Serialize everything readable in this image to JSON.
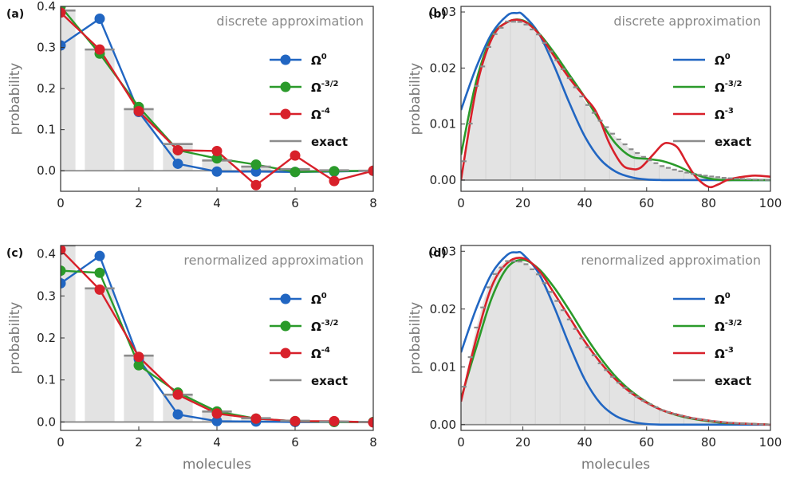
{
  "colors": {
    "omega0": "#2166c2",
    "omega32": "#2a9a2a",
    "omegaHigh": "#d8202a",
    "exact": "#8c8c8c",
    "histogram": "#e3e3e3"
  },
  "chart_data": [
    {
      "panel": "(a)",
      "type": "line",
      "title": "discrete approximation",
      "xlabel": "",
      "ylabel": "probability",
      "xlim": [
        0,
        8
      ],
      "ylim": [
        -0.05,
        0.4
      ],
      "xticks": [
        "0",
        "2",
        "4",
        "6",
        "8"
      ],
      "yticks": [
        "0.0",
        "0.1",
        "0.2",
        "0.3",
        "0.4"
      ],
      "legend_position": "right",
      "exact": {
        "name": "exact",
        "x": [
          0,
          1,
          2,
          3,
          4,
          5,
          6,
          7,
          8
        ],
        "values": [
          0.39,
          0.295,
          0.15,
          0.065,
          0.025,
          0.01,
          0.004,
          0.001,
          0.0
        ]
      },
      "series": [
        {
          "name": "Ω",
          "sup": "0",
          "color": "#2166c2",
          "markers": true,
          "x": [
            0,
            1,
            2,
            3,
            4,
            5,
            6,
            7,
            8
          ],
          "values": [
            0.305,
            0.37,
            0.143,
            0.017,
            -0.002,
            -0.002,
            -0.003,
            -0.002,
            0.0
          ]
        },
        {
          "name": "Ω",
          "sup": "-3/2",
          "color": "#2a9a2a",
          "markers": true,
          "x": [
            0,
            1,
            2,
            3,
            4,
            5,
            6,
            7,
            8
          ],
          "values": [
            0.4,
            0.285,
            0.155,
            0.05,
            0.03,
            0.015,
            -0.003,
            -0.001,
            0.0
          ]
        },
        {
          "name": "Ω",
          "sup": "-4",
          "color": "#d8202a",
          "markers": true,
          "x": [
            0,
            1,
            2,
            3,
            4,
            5,
            6,
            7,
            8
          ],
          "values": [
            0.385,
            0.295,
            0.145,
            0.05,
            0.048,
            -0.035,
            0.037,
            -0.025,
            0.0
          ]
        }
      ]
    },
    {
      "panel": "(b)",
      "type": "line",
      "title": "discrete approximation",
      "xlabel": "",
      "ylabel": "probability",
      "xlim": [
        0,
        100
      ],
      "ylim": [
        -0.002,
        0.031
      ],
      "xticks": [
        "0",
        "20",
        "40",
        "60",
        "80",
        "100"
      ],
      "yticks": [
        "0.00",
        "0.01",
        "0.02",
        "0.03"
      ],
      "legend_position": "right",
      "exact": {
        "name": "exact",
        "x": [
          0,
          5,
          10,
          15,
          20,
          25,
          30,
          35,
          40,
          45,
          50,
          55,
          60,
          65,
          70,
          75,
          80,
          85,
          90,
          95,
          100
        ],
        "values": [
          0.0,
          0.0168,
          0.0255,
          0.0283,
          0.0282,
          0.026,
          0.0222,
          0.0182,
          0.0141,
          0.0106,
          0.0077,
          0.0055,
          0.0038,
          0.0025,
          0.0017,
          0.0011,
          0.0007,
          0.0004,
          0.0002,
          0.0001,
          0.0
        ]
      },
      "series": [
        {
          "name": "Ω",
          "sup": "0",
          "color": "#2166c2",
          "markers": false,
          "x": [
            0,
            5,
            10,
            15,
            18,
            20,
            25,
            30,
            35,
            40,
            45,
            50,
            55,
            60,
            65,
            70,
            80,
            100
          ],
          "values": [
            0.0125,
            0.0202,
            0.0262,
            0.0294,
            0.0298,
            0.0295,
            0.0263,
            0.0205,
            0.0138,
            0.0078,
            0.0037,
            0.0015,
            0.0005,
            0.0001,
            0.0,
            0.0,
            0.0,
            0.0
          ]
        },
        {
          "name": "Ω",
          "sup": "-3/2",
          "color": "#2a9a2a",
          "markers": false,
          "x": [
            0,
            5,
            10,
            15,
            20,
            25,
            30,
            35,
            40,
            45,
            50,
            55,
            60,
            65,
            70,
            75,
            80,
            85,
            90,
            100
          ],
          "values": [
            0.0045,
            0.0178,
            0.0256,
            0.0282,
            0.0285,
            0.0263,
            0.0228,
            0.0188,
            0.0148,
            0.0105,
            0.0065,
            0.0042,
            0.0038,
            0.0034,
            0.0025,
            0.0012,
            0.0003,
            0.0,
            0.0,
            0.0
          ]
        },
        {
          "name": "Ω",
          "sup": "-3",
          "color": "#d8202a",
          "markers": false,
          "x": [
            0,
            5,
            10,
            15,
            20,
            25,
            30,
            35,
            40,
            43,
            45,
            48,
            52,
            55,
            58,
            62,
            65,
            67,
            70,
            73,
            76,
            80,
            83,
            86,
            90,
            95,
            100
          ],
          "values": [
            0.0,
            0.0165,
            0.0253,
            0.0282,
            0.0284,
            0.0262,
            0.0222,
            0.0182,
            0.0148,
            0.0128,
            0.0106,
            0.0065,
            0.0028,
            0.002,
            0.0022,
            0.0045,
            0.0063,
            0.0066,
            0.0058,
            0.003,
            0.0005,
            -0.0012,
            -0.0008,
            0.0,
            0.0005,
            0.0008,
            0.0006
          ]
        }
      ]
    },
    {
      "panel": "(c)",
      "type": "line",
      "title": "renormalized approximation",
      "xlabel": "molecules",
      "ylabel": "probability",
      "xlim": [
        0,
        8
      ],
      "ylim": [
        -0.02,
        0.42
      ],
      "xticks": [
        "0",
        "2",
        "4",
        "6",
        "8"
      ],
      "yticks": [
        "0.0",
        "0.1",
        "0.2",
        "0.3",
        "0.4"
      ],
      "legend_position": "right",
      "exact": {
        "name": "exact",
        "x": [
          0,
          1,
          2,
          3,
          4,
          5,
          6,
          7,
          8
        ],
        "values": [
          0.42,
          0.318,
          0.158,
          0.065,
          0.025,
          0.009,
          0.003,
          0.001,
          0.0
        ]
      },
      "series": [
        {
          "name": "Ω",
          "sup": "0",
          "color": "#2166c2",
          "markers": true,
          "x": [
            0,
            1,
            2,
            3,
            4,
            5,
            6,
            7,
            8
          ],
          "values": [
            0.33,
            0.395,
            0.15,
            0.018,
            0.002,
            0.001,
            0.0,
            0.0,
            0.0
          ]
        },
        {
          "name": "Ω",
          "sup": "-3/2",
          "color": "#2a9a2a",
          "markers": true,
          "x": [
            0,
            1,
            2,
            3,
            4,
            5,
            6,
            7,
            8
          ],
          "values": [
            0.36,
            0.355,
            0.135,
            0.07,
            0.025,
            0.008,
            0.002,
            0.0,
            0.0
          ]
        },
        {
          "name": "Ω",
          "sup": "-4",
          "color": "#d8202a",
          "markers": true,
          "x": [
            0,
            1,
            2,
            3,
            4,
            5,
            6,
            7,
            8
          ],
          "values": [
            0.41,
            0.315,
            0.155,
            0.065,
            0.02,
            0.008,
            0.002,
            0.002,
            -0.001
          ]
        }
      ]
    },
    {
      "panel": "(d)",
      "type": "line",
      "title": "renormalized approximation",
      "xlabel": "molecules",
      "ylabel": "probability",
      "xlim": [
        0,
        100
      ],
      "ylim": [
        -0.001,
        0.031
      ],
      "xticks": [
        "0",
        "20",
        "40",
        "60",
        "80",
        "100"
      ],
      "yticks": [
        "0.00",
        "0.01",
        "0.02",
        "0.03"
      ],
      "legend_position": "right",
      "exact": {
        "name": "exact",
        "x": [
          0,
          5,
          10,
          15,
          20,
          25,
          30,
          35,
          40,
          45,
          50,
          55,
          60,
          65,
          70,
          75,
          80,
          85,
          90,
          95,
          100
        ],
        "values": [
          0.004,
          0.0168,
          0.0255,
          0.0283,
          0.0282,
          0.026,
          0.0222,
          0.0182,
          0.0141,
          0.0106,
          0.0077,
          0.0055,
          0.0038,
          0.0025,
          0.0017,
          0.0011,
          0.0007,
          0.0004,
          0.0002,
          0.0001,
          0.0
        ]
      },
      "series": [
        {
          "name": "Ω",
          "sup": "0",
          "color": "#2166c2",
          "markers": false,
          "x": [
            0,
            5,
            10,
            15,
            18,
            20,
            25,
            30,
            35,
            40,
            45,
            50,
            55,
            60,
            65,
            70,
            80,
            100
          ],
          "values": [
            0.0125,
            0.0202,
            0.0262,
            0.0294,
            0.0298,
            0.0295,
            0.0263,
            0.0205,
            0.0138,
            0.0078,
            0.0037,
            0.0015,
            0.0005,
            0.0001,
            0.0,
            0.0,
            0.0,
            0.0
          ]
        },
        {
          "name": "Ω",
          "sup": "-3/2",
          "color": "#2a9a2a",
          "markers": false,
          "x": [
            0,
            5,
            10,
            15,
            20,
            25,
            30,
            35,
            40,
            45,
            50,
            55,
            60,
            65,
            70,
            75,
            80,
            85,
            90,
            95,
            100
          ],
          "values": [
            0.0045,
            0.0135,
            0.022,
            0.0272,
            0.0285,
            0.027,
            0.0238,
            0.0198,
            0.0155,
            0.0116,
            0.0083,
            0.0058,
            0.0039,
            0.0025,
            0.0016,
            0.001,
            0.0006,
            0.0003,
            0.0002,
            0.0001,
            0.0
          ]
        },
        {
          "name": "Ω",
          "sup": "-3",
          "color": "#d8202a",
          "markers": false,
          "x": [
            0,
            5,
            10,
            15,
            20,
            25,
            30,
            35,
            40,
            45,
            50,
            55,
            60,
            65,
            70,
            75,
            80,
            85,
            90,
            95,
            100
          ],
          "values": [
            0.004,
            0.015,
            0.024,
            0.028,
            0.0288,
            0.0268,
            0.0228,
            0.0186,
            0.0144,
            0.0108,
            0.0078,
            0.0055,
            0.0038,
            0.0025,
            0.0017,
            0.0011,
            0.0007,
            0.0004,
            0.0002,
            0.0001,
            0.0
          ]
        }
      ]
    }
  ]
}
